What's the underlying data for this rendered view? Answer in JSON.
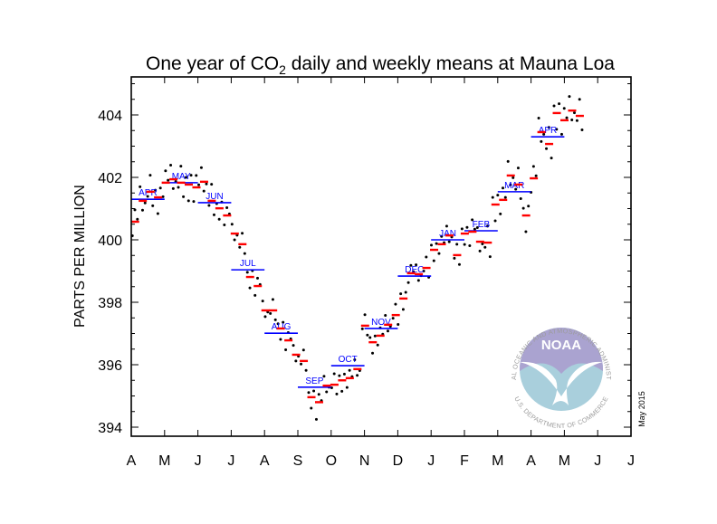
{
  "chart_data": {
    "type": "scatter",
    "title_prefix": "One year of CO",
    "title_subscript": "2",
    "title_suffix": " daily and weekly means at Mauna Loa",
    "ylabel": "PARTS PER MILLION",
    "xlabel": "",
    "ylim": [
      393.7,
      405.2
    ],
    "yticks": [
      394,
      396,
      398,
      400,
      402,
      404
    ],
    "ytick_labels": [
      "394",
      "396",
      "398",
      "400",
      "402",
      "404"
    ],
    "xtick_labels": [
      "A",
      "M",
      "J",
      "J",
      "A",
      "S",
      "O",
      "N",
      "D",
      "J",
      "F",
      "M",
      "A",
      "M",
      "J",
      "J"
    ],
    "grid": false,
    "date_note": "May 2015",
    "colors": {
      "daily": "#000000",
      "weekly": "#ff0000",
      "monthly": "#0000ff",
      "month_label": "#0000ff"
    },
    "monthly": [
      {
        "label": "APR",
        "value": 401.3
      },
      {
        "label": "MAY",
        "value": 401.83
      },
      {
        "label": "JUN",
        "value": 401.19
      },
      {
        "label": "JUL",
        "value": 399.04
      },
      {
        "label": "AUG",
        "value": 397.01
      },
      {
        "label": "SEP",
        "value": 395.28
      },
      {
        "label": "OCT",
        "value": 395.97
      },
      {
        "label": "NOV",
        "value": 397.16
      },
      {
        "label": "DEC",
        "value": 398.84
      },
      {
        "label": "JAN",
        "value": 400.0
      },
      {
        "label": "FEB",
        "value": 400.29
      },
      {
        "label": "MAR",
        "value": 401.54
      },
      {
        "label": "APR",
        "value": 403.3
      }
    ],
    "weekly": [
      400.58,
      401.25,
      401.54,
      401.36,
      401.83,
      401.94,
      401.83,
      401.77,
      401.68,
      401.86,
      401.25,
      401.01,
      400.78,
      400.2,
      399.86,
      398.81,
      398.52,
      397.74,
      397.74,
      397.16,
      396.78,
      396.32,
      396.12,
      394.96,
      394.8,
      395.33,
      395.36,
      395.5,
      395.57,
      395.86,
      397.25,
      396.72,
      396.93,
      397.28,
      397.59,
      398.12,
      398.93,
      398.9,
      399.1,
      399.68,
      399.86,
      400.14,
      399.51,
      400.2,
      400.26,
      399.94,
      399.91,
      401.13,
      401.28,
      402.06,
      401.77,
      400.78,
      401.97,
      403.45,
      403.07,
      404.06,
      403.83,
      404.14,
      403.97
    ],
    "daily": [
      400.13,
      400.96,
      400.66,
      401.7,
      400.95,
      401.18,
      401.39,
      402.07,
      401.09,
      401.59,
      400.84,
      401.66,
      401.38,
      402.21,
      401.91,
      402.39,
      401.64,
      401.87,
      401.68,
      402.36,
      401.38,
      402.0,
      401.25,
      402.07,
      401.23,
      402.06,
      401.76,
      402.31,
      401.56,
      401.79,
      401.1,
      401.78,
      400.8,
      401.16,
      400.66,
      401.21,
      400.48,
      401.03,
      400.83,
      400.5,
      400.0,
      400.15,
      399.76,
      400.21,
      399.56,
      398.96,
      398.46,
      399.01,
      398.22,
      398.77,
      398.57,
      398.04,
      397.54,
      397.69,
      397.64,
      398.09,
      397.44,
      397.31,
      396.81,
      397.36,
      396.48,
      397.03,
      396.83,
      396.62,
      396.12,
      396.27,
      396.02,
      396.47,
      395.82,
      395.11,
      394.61,
      395.16,
      394.25,
      395.05,
      394.85,
      395.63,
      395.13,
      395.28,
      395.26,
      395.71,
      395.06,
      395.65,
      395.15,
      395.7,
      395.27,
      395.82,
      395.62,
      396.16,
      395.66,
      395.81,
      397.15,
      397.6,
      396.95,
      396.87,
      396.37,
      396.92,
      396.63,
      397.18,
      396.98,
      397.58,
      397.08,
      397.23,
      397.49,
      397.94,
      397.29,
      398.27,
      397.77,
      398.32,
      398.63,
      399.18,
      398.98,
      399.2,
      398.7,
      398.85,
      399.0,
      399.45,
      398.8,
      399.83,
      399.33,
      399.88,
      399.56,
      400.11,
      399.91,
      400.44,
      399.94,
      400.09,
      399.41,
      399.86,
      399.21,
      400.35,
      399.85,
      400.4,
      399.81,
      400.64,
      400.34,
      400.39,
      399.64,
      399.87,
      399.76,
      400.44,
      399.46,
      401.36,
      400.61,
      401.43,
      400.83,
      401.66,
      401.36,
      402.51,
      401.76,
      401.99,
      401.62,
      402.3,
      401.32,
      401.01,
      400.26,
      401.08,
      401.52,
      402.35,
      402.05,
      403.9,
      403.15,
      403.38,
      402.92,
      403.6,
      402.62,
      404.29,
      403.54,
      404.36,
      403.38,
      404.21,
      403.91,
      404.59,
      403.84,
      404.07,
      403.82,
      404.5,
      403.52
    ]
  },
  "logo": {
    "name": "NOAA",
    "ring_top": "NATIONAL OCEANIC AND ATMOSPHERIC ADMINISTRATION",
    "ring_bottom": "U.S. DEPARTMENT OF COMMERCE",
    "colors": {
      "sky": "#aaa3d0",
      "sea": "#a9cfdc",
      "ring": "#9c9c9c"
    }
  }
}
